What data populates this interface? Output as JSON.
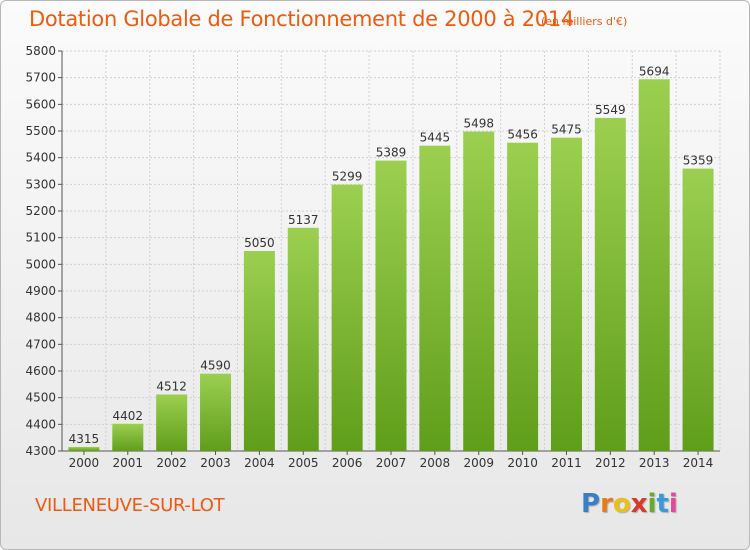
{
  "header": {
    "title": "Dotation Globale de Fonctionnement de 2000 à 2014",
    "unit_note": "(en milliers d'€)"
  },
  "footer": {
    "commune": "VILLENEUVE-SUR-LOT",
    "logo_text": "Proxiti"
  },
  "colors": {
    "title": "#ee5a10",
    "bar_top": "#9ccf50",
    "bar_bottom": "#5f9e1a",
    "grid": "#d0d0d0",
    "text": "#333333"
  },
  "chart_data": {
    "type": "bar",
    "title": "Dotation Globale de Fonctionnement de 2000 à 2014",
    "subtitle": "(en milliers d'€)",
    "xlabel": "",
    "ylabel": "",
    "categories": [
      "2000",
      "2001",
      "2002",
      "2003",
      "2004",
      "2005",
      "2006",
      "2007",
      "2008",
      "2009",
      "2010",
      "2011",
      "2012",
      "2013",
      "2014"
    ],
    "values": [
      4315,
      4402,
      4512,
      4590,
      5050,
      5137,
      5299,
      5389,
      5445,
      5498,
      5456,
      5475,
      5549,
      5694,
      5359
    ],
    "ylim": [
      4300,
      5800
    ],
    "yticks": [
      4300,
      4400,
      4500,
      4600,
      4700,
      4800,
      4900,
      5000,
      5100,
      5200,
      5300,
      5400,
      5500,
      5600,
      5700,
      5800
    ],
    "grid": true,
    "legend": "none"
  }
}
